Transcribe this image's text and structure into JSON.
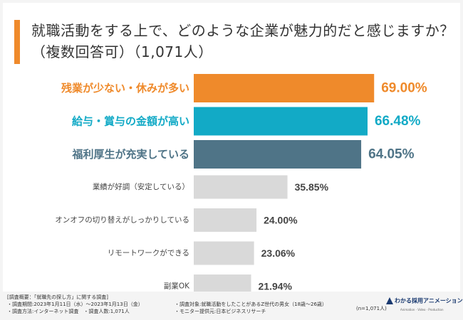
{
  "title": {
    "line1": "就職活動をする上で、どのような企業が魅力的だと感じますか？",
    "line2": "（複数回答可）（1,071人）"
  },
  "chart_data": {
    "type": "bar",
    "orientation": "horizontal",
    "title": "就職活動をする上で、どのような企業が魅力的だと感じますか？（複数回答可）（1,071人）",
    "unit": "%",
    "categories": [
      "残業が少ない・休みが多い",
      "給与・賞与の金額が高い",
      "福利厚生が充実している",
      "業績が好調（安定している）",
      "オンオフの切り替えがしっかりしている",
      "リモートワークができる",
      "副業OK"
    ],
    "values": [
      69.0,
      66.48,
      64.05,
      35.85,
      24.0,
      23.06,
      21.94
    ],
    "value_labels": [
      "69.00%",
      "66.48%",
      "64.05%",
      "35.85%",
      "24.00%",
      "23.06%",
      "21.94%"
    ],
    "highlight_colors": [
      "#ef8a2b",
      "#12aac6",
      "#4f7487"
    ],
    "other_color": "#d9d9d9",
    "xlim": [
      0,
      100
    ]
  },
  "footer": {
    "heading": "[調査概要：「就職先の探し方」に関する調査]",
    "period": "・調査期間:2023年1月11日（水）〜2023年1月13日（金）",
    "method": "・調査方法:インターネット調査　・調査人数:1,071人",
    "target": "・調査対象:就職活動をしたことがあるZ世代の男女（18歳〜26歳）",
    "provider": "・モニター提供元:日本ビジネスリサーチ",
    "n": "(n=1,071人)",
    "brand": "わかる採用アニメーション",
    "brand_sub": "Animation · Video · Production"
  }
}
